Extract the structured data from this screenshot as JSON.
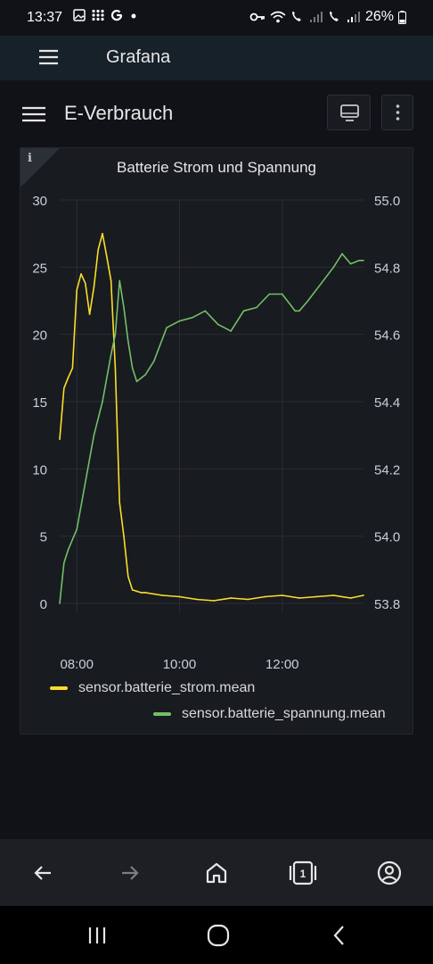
{
  "status_bar": {
    "time": "13:37",
    "battery": "26%",
    "left_icons": [
      "image-icon",
      "grid-dots-icon",
      "google-g-icon",
      "dot-icon"
    ],
    "right_icons": [
      "key-icon",
      "wifi-icon",
      "call-icon",
      "signal-icon",
      "call-2-icon",
      "signal-2-icon",
      "battery-icon"
    ]
  },
  "app_bar": {
    "title": "Grafana"
  },
  "dashboard": {
    "title": "E-Verbrauch",
    "buttons": [
      "tv-mode-icon",
      "more-vertical-icon"
    ]
  },
  "panel": {
    "info": "i",
    "title": "Batterie Strom und Spannung"
  },
  "chart_data": {
    "type": "line",
    "title": "Batterie Strom und Spannung",
    "x_ticks": [
      "08:00",
      "10:00",
      "12:00"
    ],
    "x_range": [
      "07:40",
      "13:35"
    ],
    "y_left": {
      "ticks": [
        "0",
        "5",
        "10",
        "15",
        "20",
        "25",
        "30"
      ],
      "ylim": [
        0,
        30
      ]
    },
    "y_right": {
      "ticks": [
        "53.8",
        "54.0",
        "54.2",
        "54.4",
        "54.6",
        "54.8",
        "55.0"
      ],
      "ylim": [
        53.8,
        55.0
      ]
    },
    "grid": true,
    "legend_placement": "bottom",
    "series": [
      {
        "name": "sensor.batterie_strom.mean",
        "axis": "left",
        "color": "#fade2a",
        "x": [
          "07:40",
          "07:45",
          "07:50",
          "07:55",
          "08:00",
          "08:05",
          "08:10",
          "08:15",
          "08:20",
          "08:25",
          "08:30",
          "08:35",
          "08:40",
          "08:45",
          "08:50",
          "08:55",
          "09:00",
          "09:05",
          "09:10",
          "09:15",
          "09:20",
          "09:30",
          "09:40",
          "10:00",
          "10:20",
          "10:40",
          "11:00",
          "11:20",
          "11:40",
          "12:00",
          "12:20",
          "12:40",
          "13:00",
          "13:20",
          "13:35"
        ],
        "values": [
          12.2,
          16,
          16.8,
          17.5,
          23.3,
          24.5,
          23.8,
          21.5,
          23.5,
          26.3,
          27.5,
          25.8,
          24,
          17.5,
          7.5,
          5,
          2,
          1,
          0.9,
          0.8,
          0.8,
          0.7,
          0.6,
          0.5,
          0.3,
          0.2,
          0.4,
          0.3,
          0.5,
          0.6,
          0.4,
          0.5,
          0.6,
          0.4,
          0.6
        ]
      },
      {
        "name": "sensor.batterie_spannung.mean",
        "axis": "right",
        "color": "#73bf69",
        "x": [
          "07:40",
          "07:45",
          "07:50",
          "08:00",
          "08:10",
          "08:20",
          "08:30",
          "08:40",
          "08:45",
          "08:50",
          "08:55",
          "09:00",
          "09:05",
          "09:10",
          "09:15",
          "09:20",
          "09:30",
          "09:45",
          "10:00",
          "10:15",
          "10:30",
          "10:45",
          "11:00",
          "11:15",
          "11:30",
          "11:45",
          "12:00",
          "12:15",
          "12:20",
          "12:30",
          "12:45",
          "13:00",
          "13:10",
          "13:20",
          "13:30",
          "13:35"
        ],
        "values": [
          53.8,
          53.92,
          53.96,
          54.02,
          54.16,
          54.3,
          54.4,
          54.54,
          54.6,
          54.76,
          54.68,
          54.58,
          54.5,
          54.46,
          54.47,
          54.48,
          54.52,
          54.62,
          54.64,
          54.65,
          54.67,
          54.63,
          54.61,
          54.67,
          54.68,
          54.72,
          54.72,
          54.67,
          54.67,
          54.7,
          54.75,
          54.8,
          54.84,
          54.81,
          54.82,
          54.82
        ]
      }
    ]
  },
  "bottom_nav": [
    "back-arrow-icon",
    "forward-arrow-icon",
    "home-icon",
    "tabs-icon",
    "account-icon"
  ],
  "tabs_count": "1",
  "system_nav": [
    "recents-icon",
    "home-circle-icon",
    "back-chevron-icon"
  ]
}
